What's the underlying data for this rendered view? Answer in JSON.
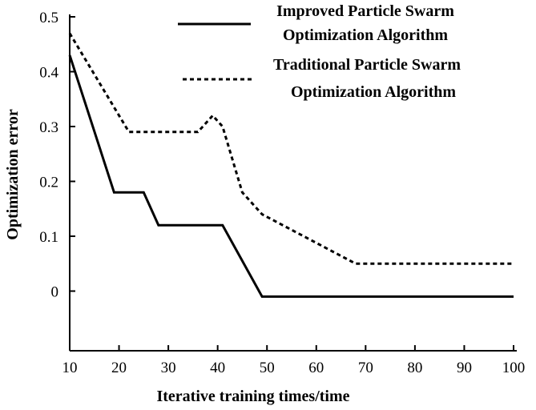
{
  "chart_data": {
    "type": "line",
    "xlabel": "Iterative training times/time",
    "ylabel": "Optimization error",
    "xlim": [
      10,
      100
    ],
    "ylim": [
      -0.1,
      0.5
    ],
    "x_ticks": [
      "10",
      "20",
      "30",
      "40",
      "50",
      "60",
      "70",
      "80",
      "90",
      "100"
    ],
    "y_ticks": [
      "0",
      "0.1",
      "0.2",
      "0.3",
      "0.4",
      "0.5"
    ],
    "legend_position": "top-right",
    "grid": false,
    "series": [
      {
        "name_lines": [
          "Improved Particle Swarm",
          "Optimization Algorithm"
        ],
        "style": "solid",
        "color": "#000000",
        "x": [
          10,
          19,
          25,
          28,
          41,
          49,
          100
        ],
        "y": [
          0.43,
          0.18,
          0.18,
          0.12,
          0.12,
          -0.01,
          -0.01
        ]
      },
      {
        "name_lines": [
          "Traditional Particle Swarm",
          "Optimization Algorithm"
        ],
        "style": "dashed",
        "color": "#000000",
        "x": [
          10,
          22,
          36,
          39,
          41,
          45,
          49,
          68,
          100
        ],
        "y": [
          0.47,
          0.29,
          0.29,
          0.32,
          0.3,
          0.18,
          0.14,
          0.05,
          0.05
        ]
      }
    ]
  }
}
